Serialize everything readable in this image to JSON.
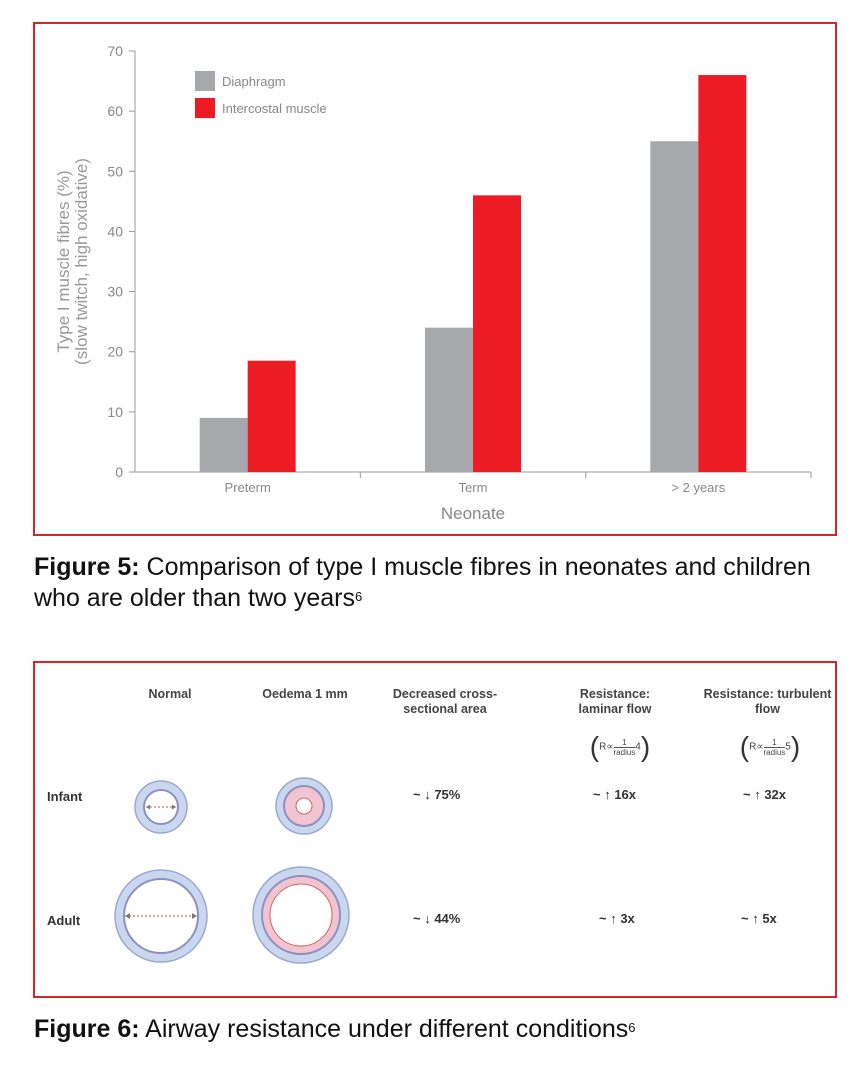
{
  "chart_data": {
    "type": "bar",
    "categories": [
      "Preterm",
      "Term",
      "> 2 years"
    ],
    "series": [
      {
        "name": "Diaphragm",
        "color": "#a7a8ab",
        "values": [
          9,
          24,
          55
        ]
      },
      {
        "name": "Intercostal muscle",
        "color": "#ed1c24",
        "values": [
          18.5,
          46,
          66
        ]
      }
    ],
    "xlabel": "Neonate",
    "ylabel": [
      "Type I muscle fibres (%)",
      "(slow twitch, high oxidative)"
    ],
    "ylim": [
      0,
      70
    ],
    "yticks": [
      0,
      10,
      20,
      30,
      40,
      50,
      60,
      70
    ],
    "grid": false,
    "legend_position": "top-left"
  },
  "figure5": {
    "label": "Figure 5:",
    "text": " Comparison of type I muscle fibres in neonates and children who are older than two years",
    "ref": "6"
  },
  "figure6": {
    "label": "Figure 6:",
    "text": " Airway resistance under different conditions",
    "ref": "6",
    "headers": {
      "normal": "Normal",
      "oedema": "Oedema 1 mm",
      "decreased": "Decreased cross-sectional area",
      "laminar": "Resistance: laminar flow",
      "turbulent": "Resistance: turbulent flow"
    },
    "formulas": {
      "laminar": {
        "prefix": "R∝",
        "num": "1",
        "den": "radius",
        "power": "4"
      },
      "turbulent": {
        "prefix": "R∝",
        "num": "1",
        "den": "radius",
        "power": "5"
      }
    },
    "rows": [
      {
        "label": "Infant",
        "area": "~ ↓ 75%",
        "laminar": "~ ↑ 16x",
        "turbulent": "~ ↑ 32x"
      },
      {
        "label": "Adult",
        "area": "~ ↓ 44%",
        "laminar": "~ ↑ 3x",
        "turbulent": "~ ↑ 5x"
      }
    ],
    "colors": {
      "lumen_ring": "#8e8fc4",
      "wall": "#c9d8ee",
      "oedema": "#f2c4cf",
      "lumen": "#ffffff"
    }
  }
}
